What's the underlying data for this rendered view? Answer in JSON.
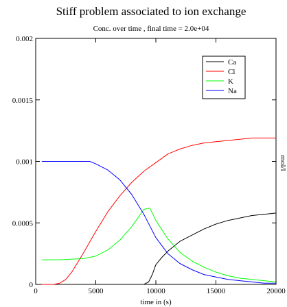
{
  "chart_data": {
    "type": "line",
    "title": "Stiff problem associated to ion exchange",
    "subtitle": "Conc. over time , final time = 2.0e+04",
    "xlabel": "time in (s)",
    "ylabel": "mol/l",
    "xlim": [
      0,
      20000
    ],
    "ylim": [
      0,
      0.002
    ],
    "x_ticks": [
      0,
      5000,
      10000,
      15000,
      20000
    ],
    "x_tick_labels": [
      "0",
      "5000",
      "10000",
      "15000",
      "20000"
    ],
    "y_ticks": [
      0,
      0.0005,
      0.001,
      0.0015,
      0.002
    ],
    "y_tick_labels": [
      "0",
      "0.0005",
      "0.001",
      "0.0015",
      "0.002"
    ],
    "grid": false,
    "legend_position": "top-right",
    "series": [
      {
        "name": "Ca",
        "color": "#000000",
        "x": [
          500,
          2000,
          4000,
          6000,
          8000,
          9000,
          9400,
          9700,
          10000,
          10500,
          11000,
          12000,
          13000,
          14000,
          15000,
          16000,
          17000,
          18000,
          19000,
          20000
        ],
        "y": [
          0,
          0,
          0,
          0,
          0,
          0,
          2e-05,
          8e-05,
          0.00016,
          0.00022,
          0.00027,
          0.00035,
          0.0004,
          0.00045,
          0.00049,
          0.00052,
          0.00054,
          0.00056,
          0.00057,
          0.00058
        ]
      },
      {
        "name": "Cl",
        "color": "#ff0000",
        "x": [
          500,
          1500,
          2000,
          2500,
          3000,
          3500,
          4000,
          5000,
          6000,
          7000,
          8000,
          9000,
          10000,
          11000,
          12000,
          13000,
          14000,
          15000,
          16000,
          17000,
          18000,
          19000,
          20000
        ],
        "y": [
          0,
          0,
          1e-05,
          4e-05,
          0.0001,
          0.00018,
          0.00026,
          0.00043,
          0.00059,
          0.00072,
          0.00083,
          0.00092,
          0.00099,
          0.00106,
          0.0011,
          0.00113,
          0.00115,
          0.00116,
          0.00117,
          0.00118,
          0.00119,
          0.00119,
          0.00119
        ]
      },
      {
        "name": "K",
        "color": "#00ff00",
        "x": [
          500,
          2000,
          4000,
          5000,
          6000,
          7000,
          8000,
          8500,
          9000,
          9500,
          10000,
          11000,
          12000,
          13000,
          14000,
          15000,
          16000,
          17000,
          18000,
          19000,
          20000
        ],
        "y": [
          0.0002,
          0.0002,
          0.00021,
          0.00023,
          0.00028,
          0.00036,
          0.00047,
          0.00054,
          0.00061,
          0.00062,
          0.00052,
          0.00037,
          0.00026,
          0.00019,
          0.00014,
          0.0001,
          7e-05,
          5e-05,
          4e-05,
          3e-05,
          2e-05
        ]
      },
      {
        "name": "Na",
        "color": "#0000ff",
        "x": [
          500,
          2000,
          3500,
          4500,
          5000,
          6000,
          7000,
          8000,
          9000,
          10000,
          11000,
          12000,
          13000,
          14000,
          15000,
          16000,
          17000,
          18000,
          19000,
          20000
        ],
        "y": [
          0.001,
          0.001,
          0.001,
          0.001,
          0.00098,
          0.00093,
          0.00085,
          0.00073,
          0.00057,
          0.00038,
          0.00025,
          0.00017,
          0.00012,
          8e-05,
          6e-05,
          4e-05,
          3e-05,
          2e-05,
          1e-05,
          1e-05
        ]
      }
    ]
  }
}
